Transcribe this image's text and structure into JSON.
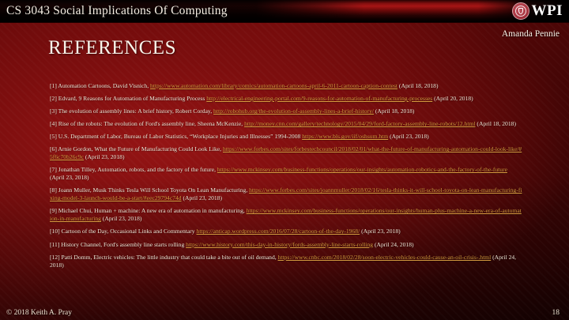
{
  "header": {
    "course_title": "CS 3043 Social Implications Of Computing",
    "logo_text": "WPI",
    "author": "Amanda Pennie"
  },
  "slide": {
    "title": "REFERENCES"
  },
  "references": [
    {
      "pre": "[1] Automation Cartoons, David Visnich, ",
      "link": "https://www.automation.com/library/comics/automation-cartoons-april-6-2011-cartoon-caption-contest",
      "post": " (April 18, 2018)"
    },
    {
      "pre": "[2] Edvard, 9 Reasons for Automation of Manufacturing Process  ",
      "link": "http://electrical-engineering-portal.com/9-reasons-for-automation-of-manufacturing-processes",
      "post": " (April 20, 2018)"
    },
    {
      "pre": "[3] The evolution of assembly lines: A brief history, Robert Corday,  ",
      "link": "http://robohub.org/the-evolution-of-assembly-lines-a-brief-history/",
      "post": " (April 18, 2018)"
    },
    {
      "pre": "[4] Rise of the robots: The evolution of Ford's assembly line, Sheena McKenzie, ",
      "link": "http://money.cnn.com/gallery/technology/2015/04/29/ford-factory-assembly-line-robots/12.html",
      "post": " (April 18, 2018)"
    },
    {
      "pre": "[5] U.S. Department of Labor, Bureau of Labor Statistics, “Workplace Injuries and Illnesses” 1994-2008 ",
      "link": "https://www.bls.gov/iif/oshsum.htm",
      "post": " (April 23, 2018)"
    },
    {
      "pre": "[6] Arnie Gordon, What the Future of Manufacturing Could Look Like, ",
      "link": "https://www.forbes.com/sites/forbestechcouncil/2018/02/01/what-the-future-of-manufacturing-automation-could-look-like/#5f6c70b26c9c",
      "post": " (April 23, 2018)"
    },
    {
      "pre": "[7] Jonathan Tilley, Automation, robots, and the factory of the future, ",
      "link": "https://www.mckinsey.com/business-functions/operations/our-insights/automation-robotics-and-the-factory-of-the-future",
      "post": " (April 23, 2018)"
    },
    {
      "pre": "[8] Joann Muller, Musk Thinks Tesla Will School Toyota On Lean Manufacturing, ",
      "link": "https://www.forbes.com/sites/joannmuller/2018/02/16/tesla-thinks-it-will-school-toyota-on-lean-manufacturing-fixing-model-3-launch-would-be-a-start/#eec29794c74d",
      "post": " (April 23, 2018)"
    },
    {
      "pre": "[9] Michael Chui, Human + machine: A new era of automation in manufacturing, ",
      "link": "https://www.mckinsey.com/business-functions/operations/our-insights/human-plus-machine-a-new-era-of-automation-in-manufacturing",
      "post": " (April 23, 2018)"
    },
    {
      "pre": "[10] Cartoon of the Day, Occasional Links and Commentary ",
      "link": "https://anticap.wordpress.com/2016/07/28/cartoon-of-the-day-1968/",
      "post": " (April 23, 2018)"
    },
    {
      "pre": "[11] History Channel, Ford's assembly line starts rolling ",
      "link": "https://www.history.com/this-day-in-history/fords-assembly-line-starts-rolling",
      "post": " (April 24, 2018)"
    },
    {
      "pre": "[12] Patti Domm, Electric vehicles: The little industry that could take a bite out of oil demand, ",
      "link": "https://www.cnbc.com/2018/02/28/soon-electric-vehicles-could-cause-an-oil-crisis-.html",
      "post": "  (April 24, 2018)"
    }
  ],
  "footer": {
    "copyright": "© 2018 Keith A. Pray",
    "page_number": "18"
  },
  "colors": {
    "link": "#d69c3f",
    "body_text": "#f0e8d8",
    "background_center": "#951414",
    "background_edge": "#2a0303",
    "header_highlight": "#ae1616",
    "seal_crimson": "#a93540"
  }
}
